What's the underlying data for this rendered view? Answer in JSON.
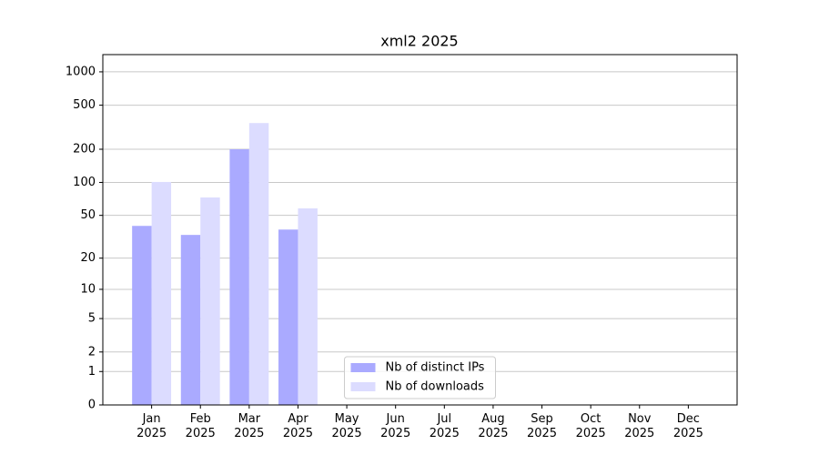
{
  "chart_data": {
    "type": "bar",
    "title": "xml2 2025",
    "categories": [
      "Jan\n2025",
      "Feb\n2025",
      "Mar\n2025",
      "Apr\n2025",
      "May\n2025",
      "Jun\n2025",
      "Jul\n2025",
      "Aug\n2025",
      "Sep\n2025",
      "Oct\n2025",
      "Nov\n2025",
      "Dec\n2025"
    ],
    "series": [
      {
        "name": "Nb of distinct IPs",
        "color": "#aaaaff",
        "values": [
          40,
          33,
          200,
          37,
          null,
          null,
          null,
          null,
          null,
          null,
          null,
          null
        ]
      },
      {
        "name": "Nb of downloads",
        "color": "#dcdcff",
        "values": [
          101,
          73,
          345,
          58,
          null,
          null,
          null,
          null,
          null,
          null,
          null,
          null
        ]
      }
    ],
    "yscale": "symlog",
    "ylim": [
      0,
      1430
    ],
    "yticks": [
      0,
      1,
      2,
      5,
      10,
      20,
      50,
      100,
      200,
      500,
      1000
    ],
    "grid": true,
    "legend": "lower center"
  }
}
